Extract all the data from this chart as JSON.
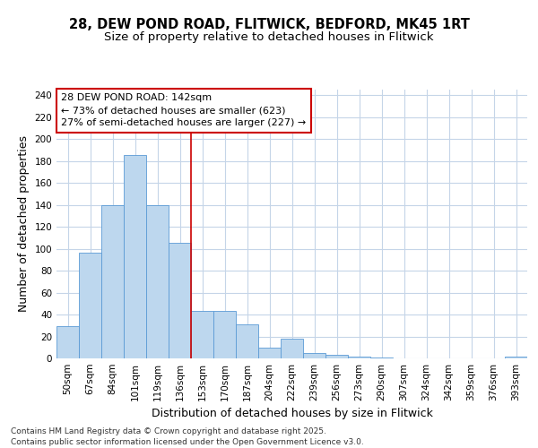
{
  "title1": "28, DEW POND ROAD, FLITWICK, BEDFORD, MK45 1RT",
  "title2": "Size of property relative to detached houses in Flitwick",
  "xlabel": "Distribution of detached houses by size in Flitwick",
  "ylabel": "Number of detached properties",
  "categories": [
    "50sqm",
    "67sqm",
    "84sqm",
    "101sqm",
    "119sqm",
    "136sqm",
    "153sqm",
    "170sqm",
    "187sqm",
    "204sqm",
    "222sqm",
    "239sqm",
    "256sqm",
    "273sqm",
    "290sqm",
    "307sqm",
    "324sqm",
    "342sqm",
    "359sqm",
    "376sqm",
    "393sqm"
  ],
  "values": [
    29,
    96,
    140,
    185,
    140,
    105,
    43,
    43,
    31,
    10,
    18,
    5,
    3,
    2,
    1,
    0,
    0,
    0,
    0,
    0,
    2
  ],
  "bar_color": "#bdd7ee",
  "bar_edgecolor": "#5b9bd5",
  "grid_color": "#c5d5e8",
  "background_color": "#ffffff",
  "vline_color": "#cc0000",
  "vline_x": 5.5,
  "annotation_text": "28 DEW POND ROAD: 142sqm\n← 73% of detached houses are smaller (623)\n27% of semi-detached houses are larger (227) →",
  "ylim": [
    0,
    245
  ],
  "yticks": [
    0,
    20,
    40,
    60,
    80,
    100,
    120,
    140,
    160,
    180,
    200,
    220,
    240
  ],
  "footer": "Contains HM Land Registry data © Crown copyright and database right 2025.\nContains public sector information licensed under the Open Government Licence v3.0.",
  "title_fontsize": 10.5,
  "subtitle_fontsize": 9.5,
  "axis_label_fontsize": 9,
  "tick_fontsize": 7.5,
  "annotation_fontsize": 8,
  "footer_fontsize": 6.5
}
